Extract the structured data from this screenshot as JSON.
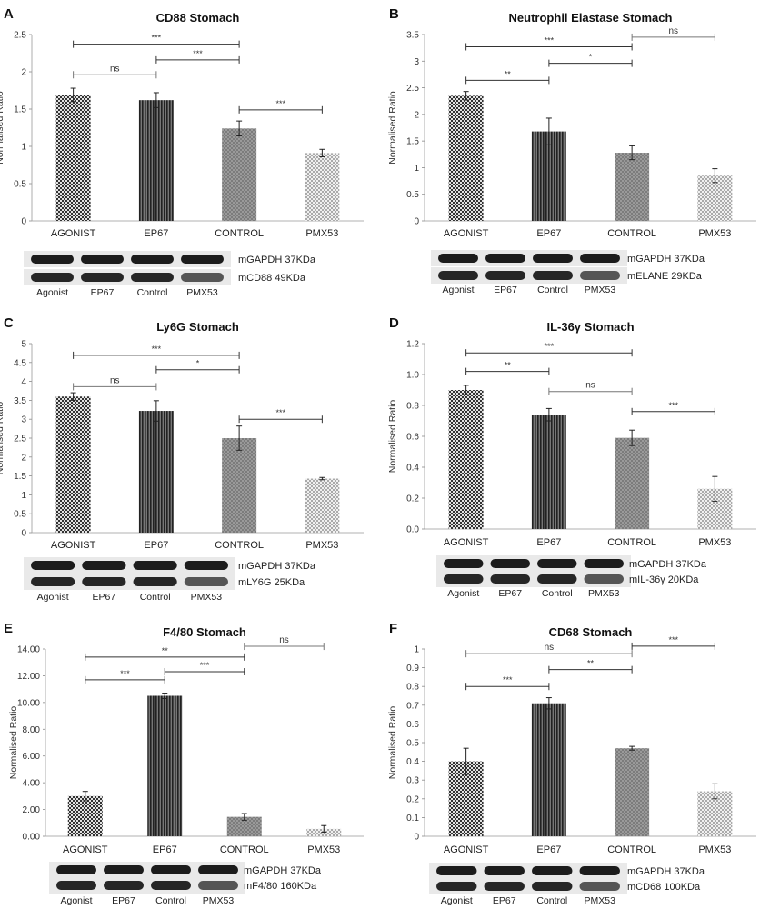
{
  "figure": {
    "panels": [
      {
        "letter": "A",
        "blot_top": "mGAPDH 37KDa",
        "blot_bottom": "mCD88 49KDa",
        "lanes": [
          "Agonist",
          "EP67",
          "Control",
          "PMX53"
        ]
      },
      {
        "letter": "B",
        "blot_top": "mGAPDH 37KDa",
        "blot_bottom": "mELANE 29KDa",
        "lanes": [
          "Agonist",
          "EP67",
          "Control",
          "PMX53"
        ]
      },
      {
        "letter": "C",
        "blot_top": "mGAPDH 37KDa",
        "blot_bottom": "mLY6G 25KDa",
        "lanes": [
          "Agonist",
          "EP67",
          "Control",
          "PMX53"
        ]
      },
      {
        "letter": "D",
        "blot_top": "mGAPDH 37KDa",
        "blot_bottom": "mIL-36γ 20KDa",
        "lanes": [
          "Agonist",
          "EP67",
          "Control",
          "PMX53"
        ]
      },
      {
        "letter": "E",
        "blot_top": "mGAPDH 37KDa",
        "blot_bottom": "mF4/80 160KDa",
        "lanes": [
          "Agonist",
          "EP67",
          "Control",
          "PMX53"
        ]
      },
      {
        "letter": "F",
        "blot_top": "mGAPDH 37KDa",
        "blot_bottom": "mCD68 100KDa",
        "lanes": [
          "Agonist",
          "EP67",
          "Control",
          "PMX53"
        ]
      }
    ]
  },
  "chart_data": [
    {
      "type": "bar",
      "title": "CD88 Stomach",
      "ylabel": "Normalised Ratio",
      "xlabel": "",
      "categories": [
        "AGONIST",
        "EP67",
        "CONTROL",
        "PMX53"
      ],
      "values": [
        1.69,
        1.62,
        1.24,
        0.91
      ],
      "errors": [
        0.09,
        0.1,
        0.1,
        0.05
      ],
      "ylim": [
        0,
        2.5
      ],
      "yticks": [
        "0",
        "0.5",
        "1",
        "1.5",
        "2",
        "2.5"
      ],
      "comparisons": [
        {
          "from": 0,
          "to": 2,
          "label": "***",
          "y": 2.37
        },
        {
          "from": 1,
          "to": 2,
          "label": "***",
          "y": 2.16
        },
        {
          "from": 0,
          "to": 1,
          "label": "ns",
          "y": 1.96
        },
        {
          "from": 2,
          "to": 3,
          "label": "***",
          "y": 1.49
        }
      ]
    },
    {
      "type": "bar",
      "title": "Neutrophil Elastase Stomach",
      "ylabel": "Normalised Ratio",
      "xlabel": "",
      "categories": [
        "AGONIST",
        "EP67",
        "CONTROL",
        "PMX53"
      ],
      "values": [
        2.35,
        1.68,
        1.28,
        0.85
      ],
      "errors": [
        0.08,
        0.25,
        0.13,
        0.13
      ],
      "ylim": [
        0,
        3.5
      ],
      "yticks": [
        "0",
        "0.5",
        "1",
        "1.5",
        "2",
        "2.5",
        "3",
        "3.5"
      ],
      "comparisons": [
        {
          "from": 0,
          "to": 2,
          "label": "***",
          "y": 3.27
        },
        {
          "from": 2,
          "to": 3,
          "label": "ns",
          "y": 3.45
        },
        {
          "from": 1,
          "to": 2,
          "label": "*",
          "y": 2.96
        },
        {
          "from": 0,
          "to": 1,
          "label": "**",
          "y": 2.64
        }
      ]
    },
    {
      "type": "bar",
      "title": "Ly6G Stomach",
      "ylabel": "Normalised Ratio",
      "xlabel": "",
      "categories": [
        "AGONIST",
        "EP67",
        "CONTROL",
        "PMX53"
      ],
      "values": [
        3.6,
        3.22,
        2.5,
        1.43
      ],
      "errors": [
        0.1,
        0.27,
        0.32,
        0.03
      ],
      "ylim": [
        0,
        5
      ],
      "yticks": [
        "0",
        "0.5",
        "1",
        "1.5",
        "2",
        "2.5",
        "3",
        "3.5",
        "4",
        "4.5",
        "5"
      ],
      "comparisons": [
        {
          "from": 0,
          "to": 2,
          "label": "***",
          "y": 4.69
        },
        {
          "from": 1,
          "to": 2,
          "label": "*",
          "y": 4.31
        },
        {
          "from": 0,
          "to": 1,
          "label": "ns",
          "y": 3.86
        },
        {
          "from": 2,
          "to": 3,
          "label": "***",
          "y": 3.0
        }
      ]
    },
    {
      "type": "bar",
      "title": "IL-36γ Stomach",
      "ylabel": "Normalised Ratio",
      "xlabel": "",
      "categories": [
        "AGONIST",
        "EP67",
        "CONTROL",
        "PMX53"
      ],
      "values": [
        0.9,
        0.74,
        0.59,
        0.26
      ],
      "errors": [
        0.03,
        0.04,
        0.05,
        0.08
      ],
      "ylim": [
        0,
        1.2
      ],
      "yticks": [
        "0.0",
        "0.2",
        "0.4",
        "0.6",
        "0.8",
        "1.0",
        "1.2"
      ],
      "comparisons": [
        {
          "from": 0,
          "to": 2,
          "label": "***",
          "y": 1.14
        },
        {
          "from": 0,
          "to": 1,
          "label": "**",
          "y": 1.02
        },
        {
          "from": 1,
          "to": 2,
          "label": "ns",
          "y": 0.89
        },
        {
          "from": 2,
          "to": 3,
          "label": "***",
          "y": 0.76
        }
      ]
    },
    {
      "type": "bar",
      "title": "F4/80 Stomach",
      "ylabel": "Normalised Ratio",
      "xlabel": "",
      "categories": [
        "AGONIST",
        "EP67",
        "CONTROL",
        "PMX53"
      ],
      "values": [
        3.0,
        10.5,
        1.45,
        0.55
      ],
      "errors": [
        0.35,
        0.2,
        0.25,
        0.25
      ],
      "ylim": [
        0,
        14
      ],
      "yticks": [
        "0.00",
        "2.00",
        "4.00",
        "6.00",
        "8.00",
        "10.00",
        "12.00",
        "14.00"
      ],
      "comparisons": [
        {
          "from": 0,
          "to": 2,
          "label": "**",
          "y": 13.4
        },
        {
          "from": 2,
          "to": 3,
          "label": "ns",
          "y": 14.2
        },
        {
          "from": 1,
          "to": 2,
          "label": "***",
          "y": 12.3
        },
        {
          "from": 0,
          "to": 1,
          "label": "***",
          "y": 11.7
        }
      ]
    },
    {
      "type": "bar",
      "title": "CD68 Stomach",
      "ylabel": "Normalised Ratio",
      "xlabel": "",
      "categories": [
        "AGONIST",
        "EP67",
        "CONTROL",
        "PMX53"
      ],
      "values": [
        0.4,
        0.71,
        0.47,
        0.24
      ],
      "errors": [
        0.07,
        0.03,
        0.01,
        0.04
      ],
      "ylim": [
        0,
        1
      ],
      "yticks": [
        "0",
        "0.1",
        "0.2",
        "0.3",
        "0.4",
        "0.5",
        "0.6",
        "0.7",
        "0.8",
        "0.9",
        "1"
      ],
      "comparisons": [
        {
          "from": 0,
          "to": 2,
          "label": "ns",
          "y": 0.975
        },
        {
          "from": 2,
          "to": 3,
          "label": "***",
          "y": 1.015
        },
        {
          "from": 1,
          "to": 2,
          "label": "**",
          "y": 0.89
        },
        {
          "from": 0,
          "to": 1,
          "label": "***",
          "y": 0.8
        }
      ]
    }
  ]
}
